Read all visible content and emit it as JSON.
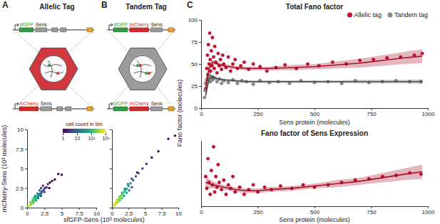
{
  "chart_data": [
    {
      "type": "scatter",
      "title": "Allelic Tag",
      "annotations": [
        "A",
        "sfGFP",
        "Sens",
        "mCherry",
        "Sens"
      ],
      "x_label": "sfGFP-Sens (10³ molecules)",
      "y_label": "mCherry-Sens (10³ molecules)",
      "xlim": [
        0,
        10
      ],
      "xticks": [
        0,
        2.5,
        5,
        7.5,
        10
      ],
      "ylim": [
        0,
        10
      ],
      "yticks": [
        0,
        2.5,
        5,
        7.5,
        10
      ],
      "x": [
        0.2,
        0.3,
        0.4,
        0.5,
        0.6,
        0.7,
        0.8,
        0.9,
        1.0,
        1.1,
        1.2,
        1.3,
        1.4,
        1.5,
        1.6,
        1.7,
        1.8,
        1.9,
        2.0,
        2.1,
        2.2,
        2.4,
        2.6,
        2.8,
        3.0,
        3.3,
        3.6,
        4.0,
        4.5,
        5.0,
        0.5,
        0.8,
        1.0,
        1.2,
        1.5,
        1.8,
        2.0,
        2.3,
        0.6,
        0.9,
        1.3,
        1.6,
        2.0,
        2.5,
        3.2
      ],
      "values": [
        0.2,
        0.3,
        0.35,
        0.45,
        0.55,
        0.6,
        0.75,
        0.8,
        0.9,
        1.0,
        1.1,
        1.2,
        1.25,
        1.35,
        1.5,
        1.6,
        1.7,
        1.8,
        1.8,
        2.0,
        2.1,
        2.3,
        2.5,
        2.6,
        3.0,
        3.2,
        3.4,
        3.6,
        4.3,
        4.2,
        0.7,
        1.0,
        1.3,
        1.5,
        1.8,
        2.2,
        2.5,
        2.8,
        0.4,
        0.6,
        0.9,
        1.2,
        1.5,
        2.0,
        2.5
      ],
      "counts": [
        300,
        800,
        1000,
        900,
        700,
        500,
        400,
        300,
        200,
        150,
        120,
        100,
        80,
        60,
        40,
        30,
        25,
        15,
        10,
        8,
        6,
        4,
        3,
        2,
        2,
        1,
        1,
        1,
        1,
        1,
        200,
        120,
        60,
        40,
        20,
        8,
        4,
        2,
        250,
        150,
        70,
        30,
        10,
        3,
        1
      ],
      "colorbar": {
        "title": "cell count in bin",
        "log": true,
        "range": [
          1,
          1000
        ],
        "ticks": [
          1,
          10,
          {
            "value": 100,
            "label": "10²"
          },
          {
            "value": 1000,
            "label": "10³"
          }
        ]
      }
    },
    {
      "type": "scatter",
      "title": "Tandem Tag",
      "annotations": [
        "B",
        "sfGFP",
        "mCherry",
        "Sens",
        "sfGFP",
        "mCherry",
        "Sens"
      ],
      "xlim": [
        0,
        10
      ],
      "xticks": [
        0,
        2.5,
        5,
        7.5,
        10
      ],
      "ylim": [
        0,
        10
      ],
      "yticks": [
        0,
        2.5,
        5,
        7.5,
        10
      ],
      "tick_labels": "x",
      "x": [
        0.2,
        0.3,
        0.4,
        0.5,
        0.6,
        0.7,
        0.8,
        0.9,
        1.0,
        1.2,
        1.4,
        1.6,
        1.8,
        2.0,
        2.2,
        2.5,
        2.8,
        3.2,
        3.6,
        4.0,
        4.6,
        5.2,
        6.0,
        7.0,
        8.5,
        9.5,
        0.6,
        0.9,
        1.2,
        1.5,
        1.8,
        2.2,
        2.6,
        3.0,
        0.8,
        1.1,
        1.5,
        1.9,
        2.4,
        3.0,
        3.8
      ],
      "values": [
        0.25,
        0.35,
        0.45,
        0.55,
        0.65,
        0.8,
        0.9,
        1.0,
        1.1,
        1.3,
        1.55,
        1.75,
        2.0,
        2.2,
        2.4,
        2.75,
        3.1,
        3.5,
        4.0,
        4.4,
        5.0,
        5.6,
        6.4,
        7.2,
        8.8,
        9.2,
        0.45,
        0.7,
        0.95,
        1.2,
        1.5,
        1.9,
        2.2,
        2.6,
        1.0,
        1.4,
        1.9,
        2.4,
        3.0,
        3.7,
        4.5
      ],
      "counts": [
        200,
        600,
        900,
        1000,
        900,
        800,
        600,
        500,
        400,
        300,
        200,
        150,
        100,
        70,
        50,
        30,
        20,
        12,
        8,
        5,
        3,
        2,
        1,
        1,
        1,
        1,
        500,
        300,
        180,
        100,
        60,
        30,
        12,
        5,
        450,
        250,
        120,
        50,
        15,
        5,
        2
      ]
    },
    {
      "type": "scatter",
      "title": "Total Fano factor",
      "annotations": [
        "C"
      ],
      "x_label": "Sens protein (molecules)",
      "y_label": "Fano factor (molecules)",
      "xlim": [
        0,
        1000
      ],
      "xticks": [
        0,
        250,
        500,
        750,
        1000
      ],
      "ylim": [
        0,
        100
      ],
      "yticks": [
        0,
        25,
        50,
        75,
        100
      ],
      "legend": "top-right",
      "series": [
        {
          "name": "Allelic tag",
          "type": "scatter",
          "color": "#c8102e",
          "x": [
            20,
            25,
            28,
            30,
            32,
            35,
            38,
            40,
            42,
            45,
            48,
            50,
            52,
            55,
            58,
            60,
            65,
            70,
            75,
            80,
            85,
            90,
            95,
            100,
            110,
            120,
            130,
            140,
            150,
            160,
            175,
            190,
            210,
            230,
            260,
            290,
            330,
            370,
            420,
            470,
            520,
            580,
            640,
            700,
            760,
            820,
            880,
            940,
            975
          ],
          "values": [
            22,
            45,
            60,
            38,
            72,
            50,
            85,
            55,
            42,
            65,
            48,
            80,
            35,
            58,
            45,
            70,
            52,
            40,
            62,
            48,
            55,
            44,
            60,
            50,
            46,
            58,
            42,
            50,
            55,
            45,
            48,
            52,
            44,
            50,
            47,
            42,
            46,
            49,
            45,
            50,
            48,
            52,
            50,
            54,
            55,
            57,
            58,
            60,
            62
          ]
        },
        {
          "name": "Tandem tag",
          "type": "scatter",
          "color": "#8c8c8c",
          "x": [
            15,
            18,
            20,
            25,
            30,
            35,
            40,
            45,
            50,
            60,
            70,
            80,
            90,
            100,
            120,
            140,
            160,
            180,
            200,
            230,
            260,
            300,
            340,
            390,
            440,
            500,
            560,
            620,
            680,
            740,
            800,
            860,
            920,
            970
          ],
          "values": [
            12,
            20,
            28,
            32,
            35,
            38,
            30,
            36,
            32,
            34,
            30,
            33,
            28,
            31,
            29,
            32,
            28,
            31,
            30,
            27,
            31,
            29,
            30,
            28,
            31,
            29,
            30,
            28,
            31,
            29,
            30,
            31,
            30,
            30
          ]
        },
        {
          "type": "line",
          "color": "#a50f2b",
          "x": [
            20,
            35,
            50,
            75,
            100,
            150,
            200,
            250,
            300,
            400,
            500,
            600,
            700,
            800,
            900,
            975
          ],
          "values": [
            22,
            45,
            52,
            50,
            48,
            46,
            45,
            45,
            45,
            46,
            47,
            49,
            51,
            54,
            57,
            59
          ],
          "lower": [
            14,
            40,
            49,
            48,
            46,
            44,
            43,
            43,
            43,
            43,
            44,
            45,
            46,
            48,
            50,
            51
          ],
          "upper": [
            30,
            50,
            55,
            52,
            50,
            48,
            47,
            47,
            47,
            49,
            50,
            53,
            56,
            60,
            64,
            67
          ]
        },
        {
          "type": "line",
          "color": "#4d4d4d",
          "x": [
            20,
            35,
            50,
            75,
            100,
            150,
            200,
            250,
            300,
            400,
            500,
            600,
            700,
            800,
            900,
            975
          ],
          "values": [
            14,
            33,
            35,
            33,
            32,
            31,
            30,
            30,
            30,
            30,
            30,
            30,
            30,
            30,
            30,
            30
          ],
          "lower": [
            10,
            31,
            33,
            31.5,
            30.5,
            29.5,
            28.5,
            28.5,
            28.5,
            28.5,
            28.5,
            28.5,
            28,
            28,
            28,
            27.5
          ],
          "upper": [
            18,
            35,
            37,
            34.5,
            33.5,
            32.5,
            31.5,
            31.5,
            31.5,
            31.5,
            31.5,
            31.5,
            32,
            32,
            32,
            32.5
          ]
        }
      ]
    },
    {
      "type": "scatter",
      "title": "Fano factor of Sens Expression",
      "x_label": "Sens protein (molecules)",
      "xlim": [
        0,
        1000
      ],
      "xticks": [
        0,
        250,
        500,
        750,
        1000
      ],
      "ylim": [
        0,
        55
      ],
      "tick_labels": "x",
      "series": [
        {
          "type": "scatter",
          "color": "#c8102e",
          "x": [
            20,
            25,
            30,
            35,
            40,
            45,
            50,
            55,
            60,
            65,
            70,
            75,
            80,
            90,
            100,
            110,
            120,
            130,
            140,
            150,
            170,
            190,
            210,
            230,
            250,
            280,
            310,
            350,
            400,
            450,
            500,
            560,
            620,
            680,
            740,
            800,
            860,
            920,
            970
          ],
          "values": [
            25,
            15,
            40,
            20,
            10,
            30,
            18,
            50,
            12,
            25,
            16,
            35,
            20,
            14,
            22,
            10,
            18,
            15,
            25,
            12,
            16,
            10,
            14,
            18,
            12,
            16,
            14,
            17,
            15,
            18,
            16,
            18,
            20,
            22,
            23,
            25,
            26,
            28,
            27
          ]
        },
        {
          "type": "line",
          "color": "#a50f2b",
          "x": [
            20,
            35,
            50,
            75,
            100,
            150,
            200,
            250,
            300,
            400,
            500,
            600,
            700,
            800,
            900,
            975
          ],
          "values": [
            20,
            19,
            18,
            17,
            16,
            14,
            13,
            13,
            14,
            15,
            17,
            19,
            21,
            24,
            27,
            29
          ],
          "lower": [
            14,
            15,
            15,
            15,
            14,
            12,
            11,
            11,
            12,
            13,
            15,
            16,
            18,
            20,
            22,
            23
          ],
          "upper": [
            26,
            23,
            21,
            19,
            18,
            16,
            15,
            15,
            16,
            17,
            19,
            22,
            24,
            28,
            32,
            35
          ]
        }
      ]
    }
  ]
}
